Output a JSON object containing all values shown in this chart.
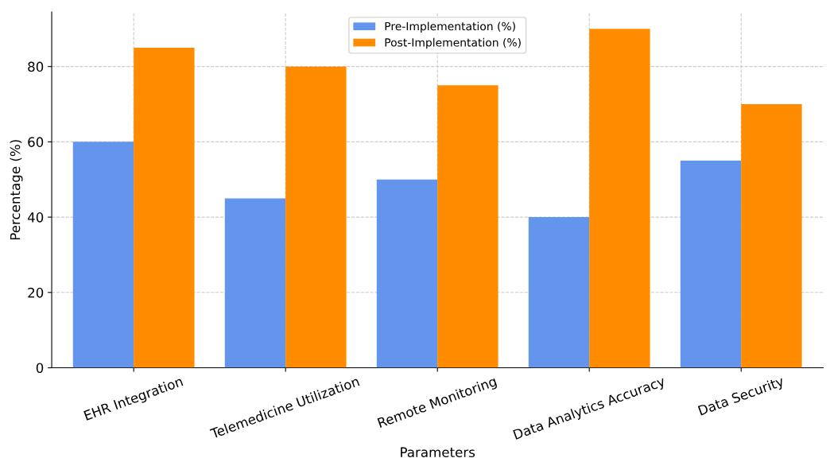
{
  "chart_data": {
    "type": "bar",
    "xlabel": "Parameters",
    "ylabel": "Percentage (%)",
    "categories": [
      "EHR Integration",
      "Telemedicine Utilization",
      "Remote Monitoring",
      "Data Analytics Accuracy",
      "Data Security"
    ],
    "series": [
      {
        "name": "Pre-Implementation (%)",
        "color": "#6495ed",
        "values": [
          60,
          45,
          50,
          40,
          55
        ]
      },
      {
        "name": "Post-Implementation (%)",
        "color": "#ff8c00",
        "values": [
          85,
          80,
          75,
          90,
          70
        ]
      }
    ],
    "ylim": [
      0,
      94.5
    ],
    "yticks": [
      0,
      20,
      40,
      60,
      80
    ],
    "grid": true,
    "legend": "top"
  }
}
